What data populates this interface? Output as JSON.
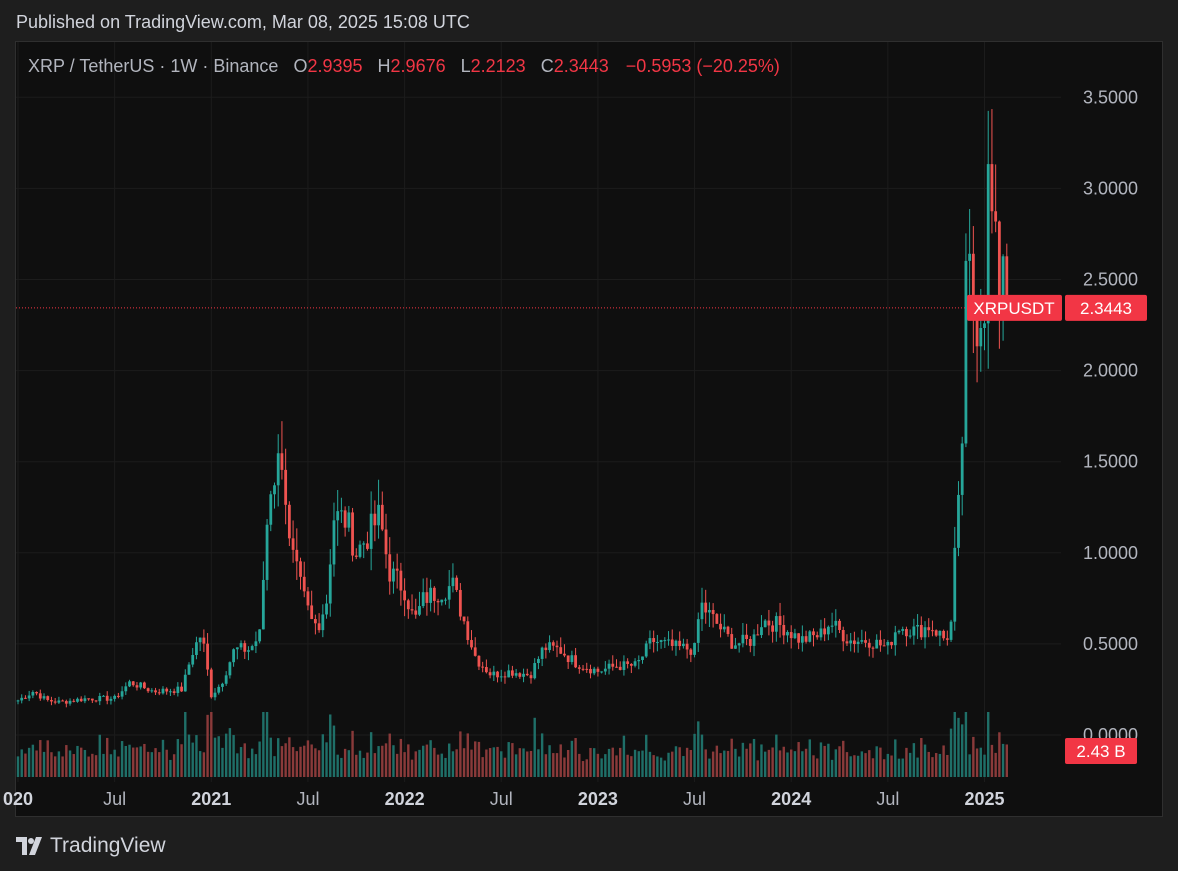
{
  "published": "Published on TradingView.com, Mar 08, 2025 15:08 UTC",
  "footer": {
    "brand": "TradingView"
  },
  "colors": {
    "up": "#26a69a",
    "down": "#ef5350",
    "up_volume": "#1f6f68",
    "down_volume": "#8a3a3a",
    "price_tag": "#f23645",
    "grid": "#1c1c1c",
    "text": "#b2b5be"
  },
  "header": {
    "symbol": "XRP / TetherUS · 1W · Binance",
    "o_label": "O",
    "o_value": "2.9395",
    "h_label": "H",
    "h_value": "2.9676",
    "l_label": "L",
    "l_value": "2.2123",
    "c_label": "C",
    "c_value": "2.3443",
    "change": "−0.5953 (−20.25%)"
  },
  "chart_data": {
    "type": "candlestick",
    "symbol": "XRPUSDT",
    "interval": "1W",
    "ylim": [
      -0.2,
      3.7
    ],
    "y_ticks": [
      "0.0000",
      "0.5000",
      "1.0000",
      "1.5000",
      "2.0000",
      "2.5000",
      "3.0000",
      "3.5000"
    ],
    "y_tick_values": [
      0,
      0.5,
      1.0,
      1.5,
      2.0,
      2.5,
      3.0,
      3.5
    ],
    "x_ticks": [
      {
        "label": "020",
        "t": 2020.0,
        "bold": true
      },
      {
        "label": "Jul",
        "t": 2020.5,
        "bold": false
      },
      {
        "label": "2021",
        "t": 2021.0,
        "bold": true
      },
      {
        "label": "Jul",
        "t": 2021.5,
        "bold": false
      },
      {
        "label": "2022",
        "t": 2022.0,
        "bold": true
      },
      {
        "label": "Jul",
        "t": 2022.5,
        "bold": false
      },
      {
        "label": "2023",
        "t": 2023.0,
        "bold": true
      },
      {
        "label": "Jul",
        "t": 2023.5,
        "bold": false
      },
      {
        "label": "2024",
        "t": 2024.0,
        "bold": true
      },
      {
        "label": "Jul",
        "t": 2024.5,
        "bold": false
      },
      {
        "label": "2025",
        "t": 2025.0,
        "bold": true
      }
    ],
    "close_anchors": [
      [
        2020.0,
        0.19
      ],
      [
        2020.08,
        0.24
      ],
      [
        2020.15,
        0.19
      ],
      [
        2020.22,
        0.18
      ],
      [
        2020.35,
        0.2
      ],
      [
        2020.5,
        0.2
      ],
      [
        2020.58,
        0.29
      ],
      [
        2020.7,
        0.24
      ],
      [
        2020.85,
        0.25
      ],
      [
        2020.9,
        0.45
      ],
      [
        2020.95,
        0.56
      ],
      [
        2021.0,
        0.22
      ],
      [
        2021.05,
        0.28
      ],
      [
        2021.12,
        0.47
      ],
      [
        2021.2,
        0.47
      ],
      [
        2021.25,
        0.55
      ],
      [
        2021.3,
        1.35
      ],
      [
        2021.37,
        1.56
      ],
      [
        2021.4,
        1.05
      ],
      [
        2021.47,
        0.78
      ],
      [
        2021.52,
        0.62
      ],
      [
        2021.55,
        0.6
      ],
      [
        2021.6,
        0.75
      ],
      [
        2021.63,
        1.2
      ],
      [
        2021.7,
        1.18
      ],
      [
        2021.75,
        1.0
      ],
      [
        2021.8,
        1.08
      ],
      [
        2021.87,
        1.2
      ],
      [
        2021.92,
        0.9
      ],
      [
        2022.0,
        0.8
      ],
      [
        2022.05,
        0.62
      ],
      [
        2022.1,
        0.75
      ],
      [
        2022.2,
        0.8
      ],
      [
        2022.25,
        0.82
      ],
      [
        2022.3,
        0.65
      ],
      [
        2022.37,
        0.42
      ],
      [
        2022.45,
        0.33
      ],
      [
        2022.55,
        0.35
      ],
      [
        2022.65,
        0.33
      ],
      [
        2022.72,
        0.48
      ],
      [
        2022.8,
        0.47
      ],
      [
        2022.88,
        0.4
      ],
      [
        2023.0,
        0.35
      ],
      [
        2023.1,
        0.38
      ],
      [
        2023.2,
        0.38
      ],
      [
        2023.28,
        0.52
      ],
      [
        2023.4,
        0.48
      ],
      [
        2023.5,
        0.47
      ],
      [
        2023.53,
        0.72
      ],
      [
        2023.6,
        0.63
      ],
      [
        2023.7,
        0.5
      ],
      [
        2023.8,
        0.52
      ],
      [
        2023.85,
        0.63
      ],
      [
        2023.95,
        0.6
      ],
      [
        2024.05,
        0.52
      ],
      [
        2024.15,
        0.55
      ],
      [
        2024.2,
        0.62
      ],
      [
        2024.3,
        0.52
      ],
      [
        2024.4,
        0.52
      ],
      [
        2024.5,
        0.48
      ],
      [
        2024.55,
        0.6
      ],
      [
        2024.65,
        0.57
      ],
      [
        2024.72,
        0.6
      ],
      [
        2024.8,
        0.52
      ],
      [
        2024.83,
        0.62
      ],
      [
        2024.85,
        1.05
      ],
      [
        2024.88,
        1.4
      ],
      [
        2024.9,
        2.4
      ],
      [
        2024.92,
        2.55
      ],
      [
        2024.95,
        2.25
      ],
      [
        2025.0,
        2.4
      ],
      [
        2025.02,
        3.05
      ],
      [
        2025.05,
        2.7
      ],
      [
        2025.08,
        2.4
      ],
      [
        2025.11,
        2.94
      ],
      [
        2025.13,
        2.34
      ]
    ],
    "last_price": 2.3443,
    "price_label": "XRPUSDT",
    "price_value": "2.3443",
    "volume_label": "2.43 B"
  }
}
